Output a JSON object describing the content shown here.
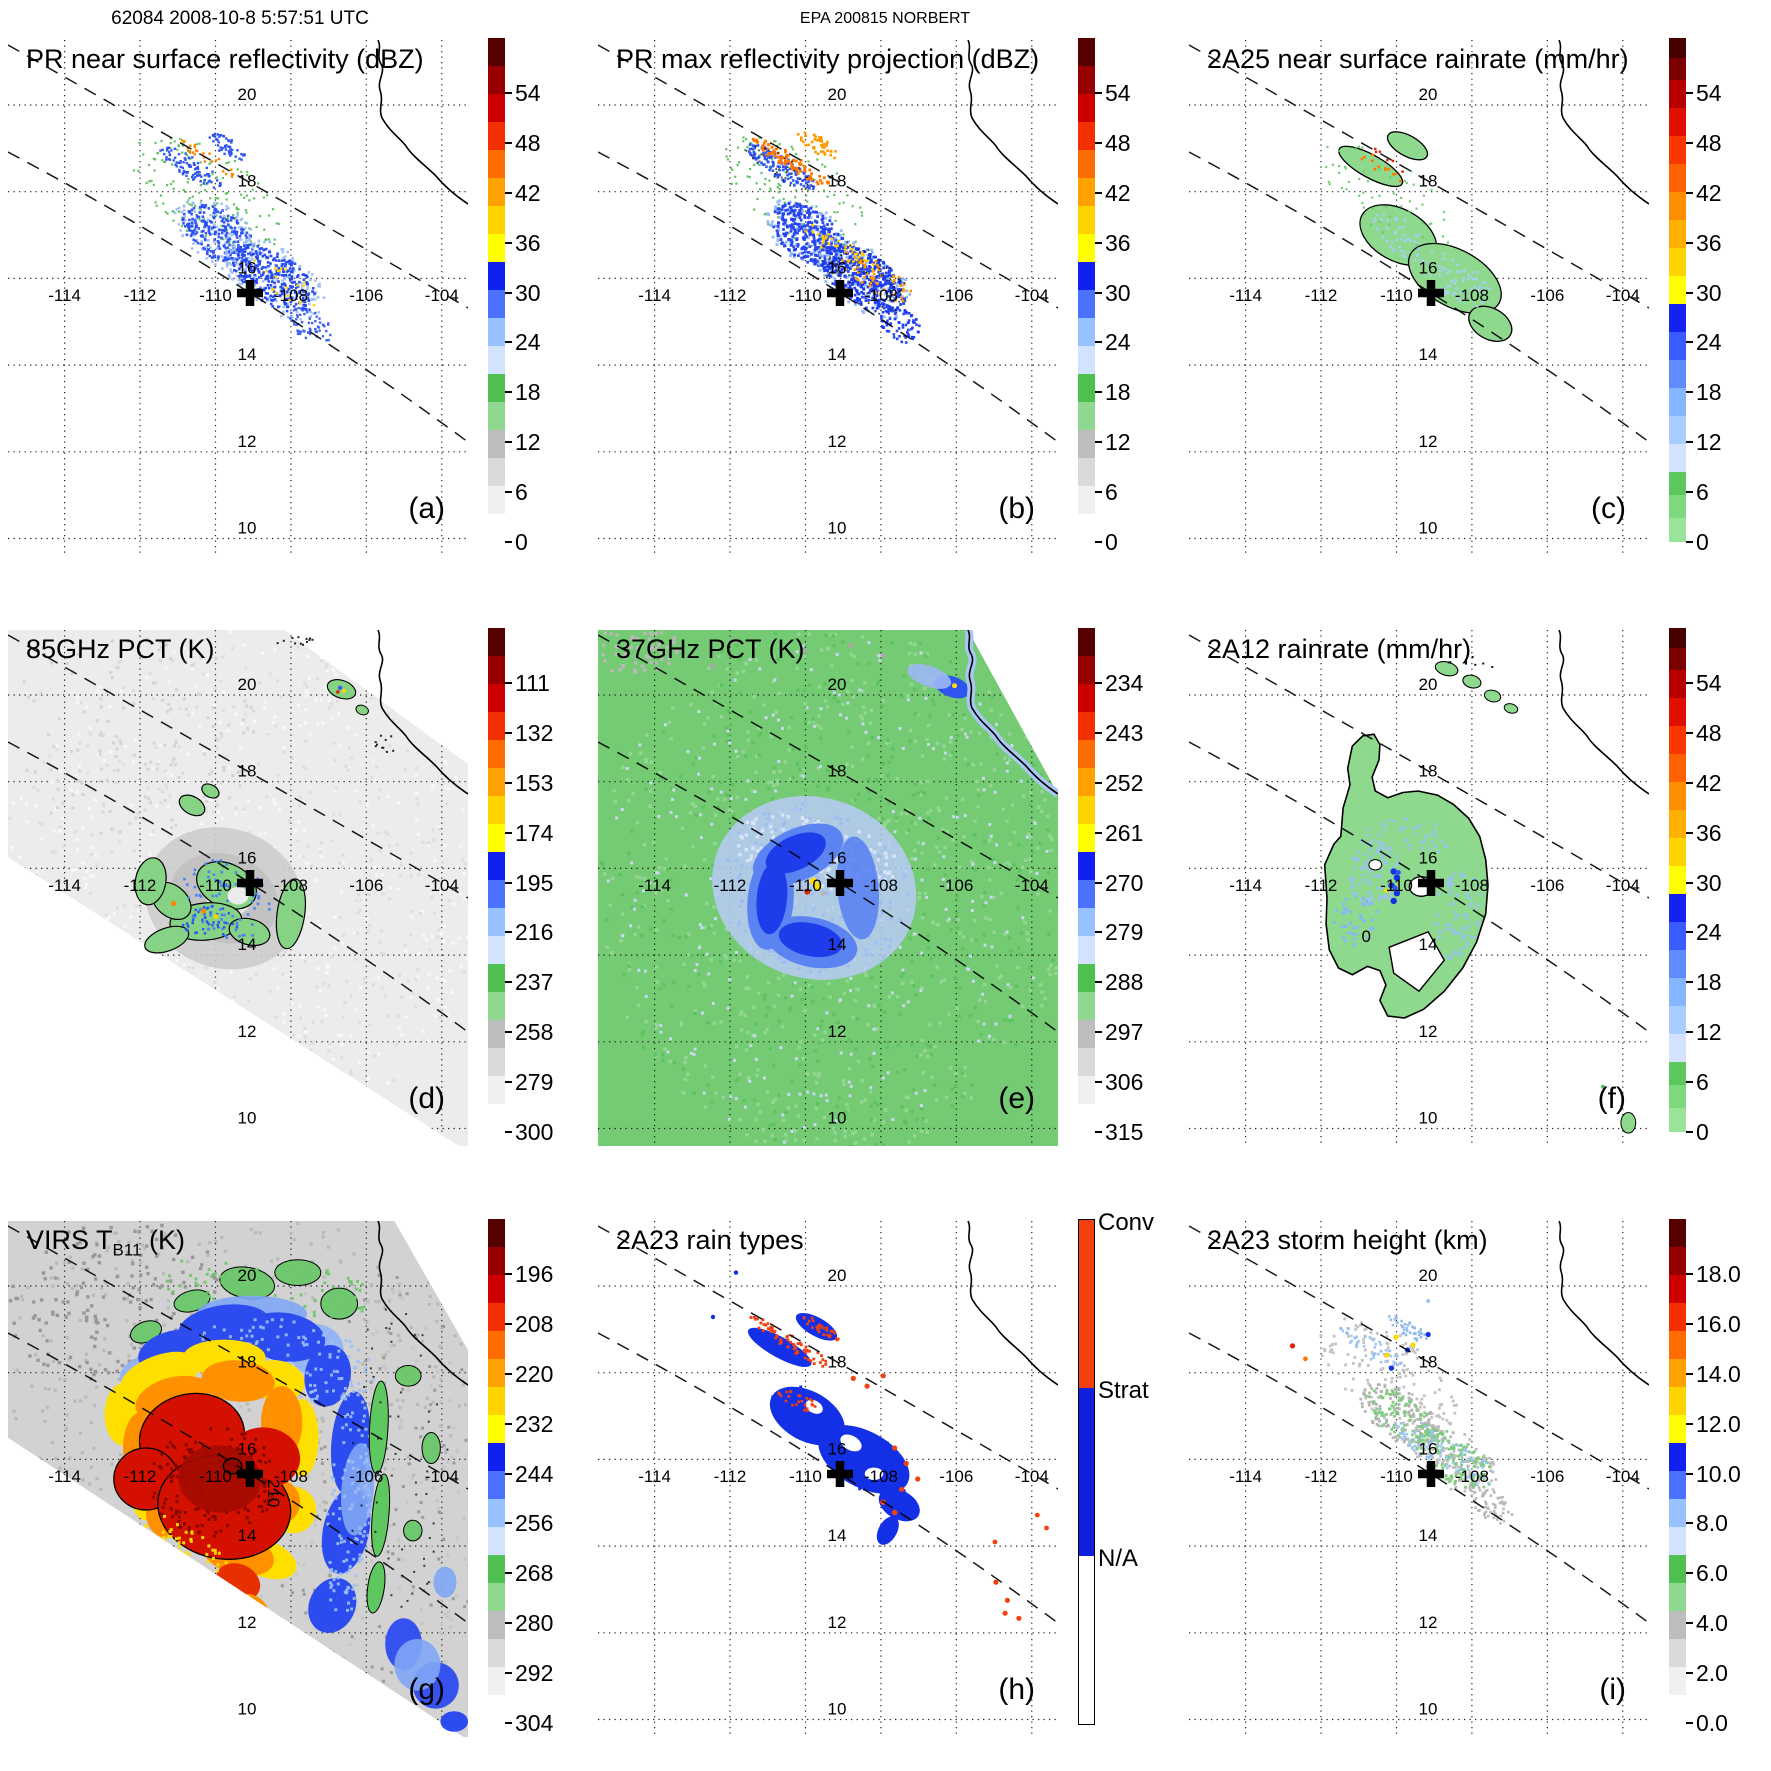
{
  "header": {
    "left": "62084 2008-10-8 5:57:51 UTC",
    "center": "EPA 200815 NORBERT"
  },
  "map": {
    "lon_labels": [
      "-114",
      "-112",
      "-110",
      "-108",
      "-106",
      "-104"
    ],
    "lat_labels": [
      "20",
      "18",
      "16",
      "14",
      "12",
      "10"
    ],
    "marker_symbol": "+",
    "marker_lon": -109.6,
    "marker_lat": 15.8
  },
  "palettes": {
    "refl": [
      [
        0.0,
        "#ffffff"
      ],
      [
        0.055,
        "#f0f0f0"
      ],
      [
        0.111,
        "#dadada"
      ],
      [
        0.167,
        "#bdbdbd"
      ],
      [
        0.222,
        "#90d890"
      ],
      [
        0.278,
        "#4fbf4f"
      ],
      [
        0.333,
        "#d2e2ff"
      ],
      [
        0.389,
        "#97c1ff"
      ],
      [
        0.444,
        "#4b71ff"
      ],
      [
        0.5,
        "#1020ee"
      ],
      [
        0.556,
        "#ffff00"
      ],
      [
        0.611,
        "#ffd300"
      ],
      [
        0.667,
        "#ffa100"
      ],
      [
        0.722,
        "#ff6d00"
      ],
      [
        0.778,
        "#f23000"
      ],
      [
        0.833,
        "#cd0000"
      ],
      [
        0.889,
        "#960000"
      ],
      [
        0.944,
        "#570000"
      ]
    ],
    "rain": [
      [
        0.0,
        "#9ae49a"
      ],
      [
        0.047,
        "#7ed87e"
      ],
      [
        0.094,
        "#5cc75c"
      ],
      [
        0.139,
        "#d2e2ff"
      ],
      [
        0.194,
        "#aacdff"
      ],
      [
        0.25,
        "#86b5ff"
      ],
      [
        0.306,
        "#5e8cff"
      ],
      [
        0.361,
        "#3a5cff"
      ],
      [
        0.417,
        "#1322ee"
      ],
      [
        0.472,
        "#ffff00"
      ],
      [
        0.528,
        "#ffd300"
      ],
      [
        0.583,
        "#ffb000"
      ],
      [
        0.639,
        "#ff8d00"
      ],
      [
        0.694,
        "#ff6000"
      ],
      [
        0.75,
        "#f93800"
      ],
      [
        0.806,
        "#e01000"
      ],
      [
        0.861,
        "#b80000"
      ],
      [
        0.917,
        "#7c0000"
      ],
      [
        0.961,
        "#470000"
      ]
    ],
    "raintype": {
      "conv": "#f4400e",
      "strat": "#1020e0",
      "na": "#ffffff"
    }
  },
  "panels": [
    {
      "id": "a",
      "letter": "(a)",
      "title": "PR near surface reflectivity (dBZ)",
      "units": "dBZ",
      "palette": "refl",
      "ticks": [
        "54",
        "48",
        "42",
        "36",
        "30",
        "24",
        "18",
        "12",
        "6",
        "0"
      ]
    },
    {
      "id": "b",
      "letter": "(b)",
      "title": "PR max reflectivity projection (dBZ)",
      "units": "dBZ",
      "palette": "refl",
      "ticks": [
        "54",
        "48",
        "42",
        "36",
        "30",
        "24",
        "18",
        "12",
        "6",
        "0"
      ]
    },
    {
      "id": "c",
      "letter": "(c)",
      "title": "2A25 near surface rainrate (mm/hr)",
      "units": "mm/hr",
      "palette": "rain",
      "ticks": [
        "54",
        "48",
        "42",
        "36",
        "30",
        "24",
        "18",
        "12",
        "6",
        "0"
      ]
    },
    {
      "id": "d",
      "letter": "(d)",
      "title": "85GHz PCT (K)",
      "units": "K",
      "palette": "refl",
      "ticks": [
        "111",
        "132",
        "153",
        "174",
        "195",
        "216",
        "237",
        "258",
        "279",
        "300"
      ]
    },
    {
      "id": "e",
      "letter": "(e)",
      "title": "37GHz PCT (K)",
      "units": "K",
      "palette": "refl",
      "ticks": [
        "234",
        "243",
        "252",
        "261",
        "270",
        "279",
        "288",
        "297",
        "306",
        "315"
      ]
    },
    {
      "id": "f",
      "letter": "(f)",
      "title": "2A12 rainrate (mm/hr)",
      "units": "mm/hr",
      "palette": "rain",
      "ticks": [
        "54",
        "48",
        "42",
        "36",
        "30",
        "24",
        "18",
        "12",
        "6",
        "0"
      ],
      "contour_label": "0"
    },
    {
      "id": "g",
      "letter": "(g)",
      "title": "VIRS T",
      "title_sub": "B11",
      "title_suffix": " (K)",
      "units": "K",
      "palette": "refl",
      "ticks": [
        "196",
        "208",
        "220",
        "232",
        "244",
        "256",
        "268",
        "280",
        "292",
        "304"
      ],
      "contour_label": "210"
    },
    {
      "id": "h",
      "letter": "(h)",
      "title": "2A23 rain types",
      "palette": "raintype",
      "categories": [
        "Conv",
        "Strat",
        "N/A"
      ]
    },
    {
      "id": "i",
      "letter": "(i)",
      "title": "2A23 storm height (km)",
      "units": "km",
      "palette": "refl",
      "ticks": [
        "18.0",
        "16.0",
        "14.0",
        "12.0",
        "10.0",
        "8.0",
        "6.0",
        "4.0",
        "2.0",
        "0.0"
      ]
    }
  ],
  "chart_data": [
    {
      "panel": "a",
      "type": "heatmap",
      "title": "PR near surface reflectivity (dBZ)",
      "units": "dBZ",
      "x_axis": "longitude",
      "y_axis": "latitude",
      "lon_ticks": [
        -114,
        -112,
        -110,
        -108,
        -106,
        -104
      ],
      "lat_ticks": [
        20,
        18,
        16,
        14,
        12,
        10
      ],
      "lon_range": [
        -115.6,
        -103.8
      ],
      "lat_range": [
        9.6,
        21.5
      ],
      "colorbar_ticks": [
        54,
        48,
        42,
        36,
        30,
        24,
        18,
        12,
        6,
        0
      ],
      "storm_center": [
        -109.6,
        15.8
      ]
    },
    {
      "panel": "b",
      "type": "heatmap",
      "title": "PR max reflectivity projection (dBZ)",
      "units": "dBZ",
      "x_axis": "longitude",
      "y_axis": "latitude",
      "lon_ticks": [
        -114,
        -112,
        -110,
        -108,
        -106,
        -104
      ],
      "lat_ticks": [
        20,
        18,
        16,
        14,
        12,
        10
      ],
      "lon_range": [
        -115.6,
        -103.8
      ],
      "lat_range": [
        9.6,
        21.5
      ],
      "colorbar_ticks": [
        54,
        48,
        42,
        36,
        30,
        24,
        18,
        12,
        6,
        0
      ],
      "storm_center": [
        -109.6,
        15.8
      ]
    },
    {
      "panel": "c",
      "type": "heatmap",
      "title": "2A25 near surface rainrate (mm/hr)",
      "units": "mm/hr",
      "x_axis": "longitude",
      "y_axis": "latitude",
      "lon_ticks": [
        -114,
        -112,
        -110,
        -108,
        -106,
        -104
      ],
      "lat_ticks": [
        20,
        18,
        16,
        14,
        12,
        10
      ],
      "lon_range": [
        -115.6,
        -103.8
      ],
      "lat_range": [
        9.6,
        21.5
      ],
      "colorbar_ticks": [
        54,
        48,
        42,
        36,
        30,
        24,
        18,
        12,
        6,
        0
      ],
      "storm_center": [
        -109.6,
        15.8
      ]
    },
    {
      "panel": "d",
      "type": "heatmap",
      "title": "85GHz PCT (K)",
      "units": "K",
      "x_axis": "longitude",
      "y_axis": "latitude",
      "lon_ticks": [
        -114,
        -112,
        -110,
        -108,
        -106,
        -104
      ],
      "lat_ticks": [
        20,
        18,
        16,
        14,
        12,
        10
      ],
      "lon_range": [
        -115.6,
        -103.8
      ],
      "lat_range": [
        9.6,
        21.5
      ],
      "colorbar_ticks": [
        111,
        132,
        153,
        174,
        195,
        216,
        237,
        258,
        279,
        300
      ],
      "storm_center": [
        -109.6,
        15.8
      ]
    },
    {
      "panel": "e",
      "type": "heatmap",
      "title": "37GHz PCT (K)",
      "units": "K",
      "x_axis": "longitude",
      "y_axis": "latitude",
      "lon_ticks": [
        -114,
        -112,
        -110,
        -108,
        -106,
        -104
      ],
      "lat_ticks": [
        20,
        18,
        16,
        14,
        12,
        10
      ],
      "lon_range": [
        -115.6,
        -103.8
      ],
      "lat_range": [
        9.6,
        21.5
      ],
      "colorbar_ticks": [
        234,
        243,
        252,
        261,
        270,
        279,
        288,
        297,
        306,
        315
      ],
      "storm_center": [
        -109.6,
        15.8
      ]
    },
    {
      "panel": "f",
      "type": "heatmap",
      "title": "2A12 rainrate (mm/hr)",
      "units": "mm/hr",
      "x_axis": "longitude",
      "y_axis": "latitude",
      "lon_ticks": [
        -114,
        -112,
        -110,
        -108,
        -106,
        -104
      ],
      "lat_ticks": [
        20,
        18,
        16,
        14,
        12,
        10
      ],
      "lon_range": [
        -115.6,
        -103.8
      ],
      "lat_range": [
        9.6,
        21.5
      ],
      "colorbar_ticks": [
        54,
        48,
        42,
        36,
        30,
        24,
        18,
        12,
        6,
        0
      ],
      "storm_center": [
        -109.6,
        15.8
      ]
    },
    {
      "panel": "g",
      "type": "heatmap",
      "title": "VIRS TB11 (K)",
      "units": "K",
      "x_axis": "longitude",
      "y_axis": "latitude",
      "lon_ticks": [
        -114,
        -112,
        -110,
        -108,
        -106,
        -104
      ],
      "lat_ticks": [
        20,
        18,
        16,
        14,
        12,
        10
      ],
      "lon_range": [
        -115.6,
        -103.8
      ],
      "lat_range": [
        9.6,
        21.5
      ],
      "colorbar_ticks": [
        196,
        208,
        220,
        232,
        244,
        256,
        268,
        280,
        292,
        304
      ],
      "contour_label": 210,
      "storm_center": [
        -109.6,
        15.8
      ]
    },
    {
      "panel": "h",
      "type": "heatmap",
      "title": "2A23 rain types",
      "units": "category",
      "x_axis": "longitude",
      "y_axis": "latitude",
      "lon_ticks": [
        -114,
        -112,
        -110,
        -108,
        -106,
        -104
      ],
      "lat_ticks": [
        20,
        18,
        16,
        14,
        12,
        10
      ],
      "lon_range": [
        -115.6,
        -103.8
      ],
      "lat_range": [
        9.6,
        21.5
      ],
      "categories": [
        "Conv",
        "Strat",
        "N/A"
      ],
      "storm_center": [
        -109.6,
        15.8
      ]
    },
    {
      "panel": "i",
      "type": "heatmap",
      "title": "2A23 storm height (km)",
      "units": "km",
      "x_axis": "longitude",
      "y_axis": "latitude",
      "lon_ticks": [
        -114,
        -112,
        -110,
        -108,
        -106,
        -104
      ],
      "lat_ticks": [
        20,
        18,
        16,
        14,
        12,
        10
      ],
      "lon_range": [
        -115.6,
        -103.8
      ],
      "lat_range": [
        9.6,
        21.5
      ],
      "colorbar_ticks": [
        18,
        16,
        14,
        12,
        10,
        8,
        6,
        4,
        2,
        0
      ],
      "storm_center": [
        -109.6,
        15.8
      ]
    }
  ]
}
